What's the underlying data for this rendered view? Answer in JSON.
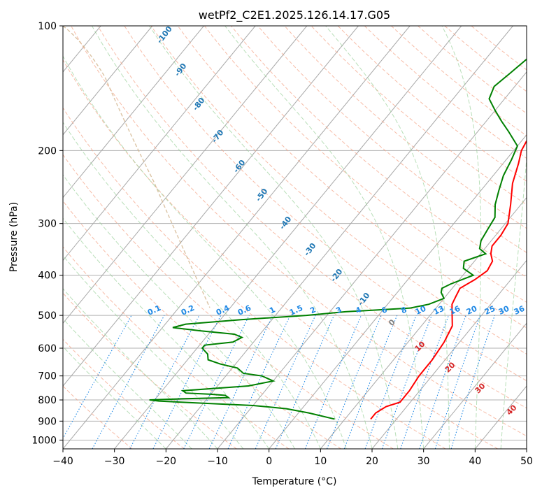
{
  "chart_data": {
    "type": "line",
    "title": "wetPf2_C2E1.2025.126.14.17.G05",
    "xlabel": "Temperature (°C)",
    "ylabel": "Pressure (hPa)",
    "xlim": [
      -40,
      50
    ],
    "ylim": [
      1050,
      100
    ],
    "yscale": "log",
    "grid": true,
    "x_ticks": [
      "−40",
      "−30",
      "−20",
      "−10",
      "0",
      "10",
      "20",
      "30",
      "40",
      "50"
    ],
    "y_ticks": [
      "100",
      "200",
      "300",
      "400",
      "500",
      "600",
      "700",
      "800",
      "900",
      "1000"
    ],
    "series": [
      {
        "color": "#ff0000",
        "p": [
          890,
          860,
          830,
          810,
          790,
          760,
          700,
          640,
          580,
          530,
          495,
          470,
          450,
          430,
          410,
          390,
          370,
          355,
          340,
          320,
          300,
          270,
          240,
          215,
          200,
          190,
          180,
          170,
          160,
          150,
          140,
          130,
          120,
          110,
          100
        ],
        "t": [
          15,
          15,
          16,
          18,
          18,
          18,
          17.5,
          17.5,
          17,
          16,
          14,
          12.5,
          12,
          11.5,
          13,
          14,
          13.5,
          12,
          11,
          11,
          10.5,
          8,
          5,
          3,
          1.5,
          1,
          2,
          4,
          5.5,
          5.5,
          7,
          8.5,
          8,
          9,
          12
        ]
      },
      {
        "color": "#008000",
        "p": [
          890,
          860,
          840,
          825,
          815,
          805,
          800,
          795,
          790,
          785,
          780,
          775,
          770,
          760,
          740,
          720,
          700,
          690,
          670,
          655,
          640,
          620,
          600,
          590,
          580,
          565,
          555,
          545,
          535,
          525,
          512,
          500,
          490,
          480,
          470,
          455,
          440,
          430,
          420,
          400,
          385,
          370,
          355,
          345,
          330,
          310,
          290,
          270,
          250,
          230,
          210,
          195,
          180,
          170,
          160,
          150,
          140,
          130,
          120,
          110,
          100
        ],
        "t": [
          8,
          2,
          -3,
          -10,
          -20,
          -29,
          -31,
          -25,
          -16,
          -16.5,
          -17,
          -20,
          -25,
          -26,
          -14,
          -10,
          -13,
          -17,
          -19,
          -23,
          -26,
          -27,
          -29,
          -29,
          -24,
          -23,
          -25,
          -32,
          -38,
          -36,
          -26,
          -14,
          -7,
          5,
          8,
          10,
          8.5,
          8,
          9,
          12,
          9,
          8,
          11,
          9,
          8,
          7.5,
          7,
          5,
          3.5,
          2,
          1,
          0,
          -4,
          -7,
          -10,
          -13,
          -14,
          -13,
          -12,
          -10,
          -7
        ]
      }
    ],
    "dry_adiabat_labels": [
      "-100",
      "-90",
      "-80",
      "-70",
      "-60",
      "-50",
      "-40",
      "-30",
      "-20",
      "-10"
    ],
    "mixing_ratio_labels": [
      "0.1",
      "0.2",
      "0.4",
      "0.6",
      "1",
      "1.5",
      "2",
      "3",
      "4",
      "6",
      "8",
      "10",
      "13",
      "16",
      "20",
      "25",
      "30",
      "36"
    ],
    "moist_adiabat_labels": [
      "0",
      "10",
      "20",
      "30",
      "40"
    ]
  }
}
